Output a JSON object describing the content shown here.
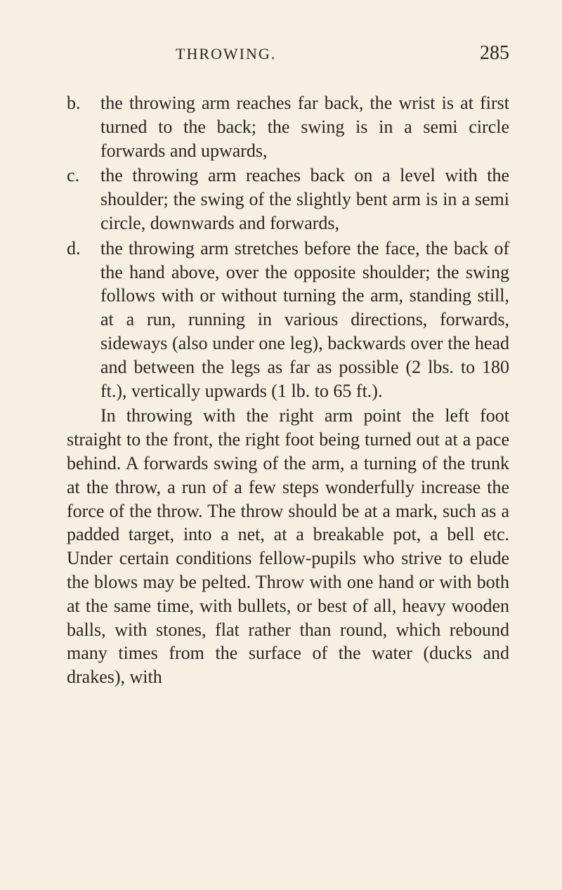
{
  "header": {
    "title": "THROWING.",
    "page_number": "285"
  },
  "items": [
    {
      "label": "b.",
      "text": "the throwing arm reaches far back, the wrist is at first turned to the back; the swing is in a semi circle forwards and upwards,"
    },
    {
      "label": "c.",
      "text": "the throwing arm reaches back on a level with the shoulder; the swing of the slightly bent arm is in a semi circle, downwards and forwards,"
    },
    {
      "label": "d.",
      "text": "the throwing arm stretches before the face, the back of the hand above, over the opposite shoulder; the swing follows with or without turning the arm, standing still, at a run, running in various directions, forwards, sideways (also under one leg), backwards over the head and between the legs as far as possible (2 lbs. to 180 ft.), vertically upwards (1 lb. to 65 ft.)."
    }
  ],
  "paragraph": "In throwing with the right arm point the left foot straight to the front, the right foot being turned out at a pace behind. A forwards swing of the arm, a turning of the trunk at the throw, a run of a few steps wonderfully increase the force of the throw. The throw should be at a mark, such as a padded target, into a net, at a breakable pot, a bell etc. Under certain conditions fellow-pupils who strive to elude the blows may be pelted. Throw with one hand or with both at the same time, with bullets, or best of all, heavy wooden balls, with stones, flat rather than round, which rebound many times from the surface of the water (ducks and drakes), with"
}
